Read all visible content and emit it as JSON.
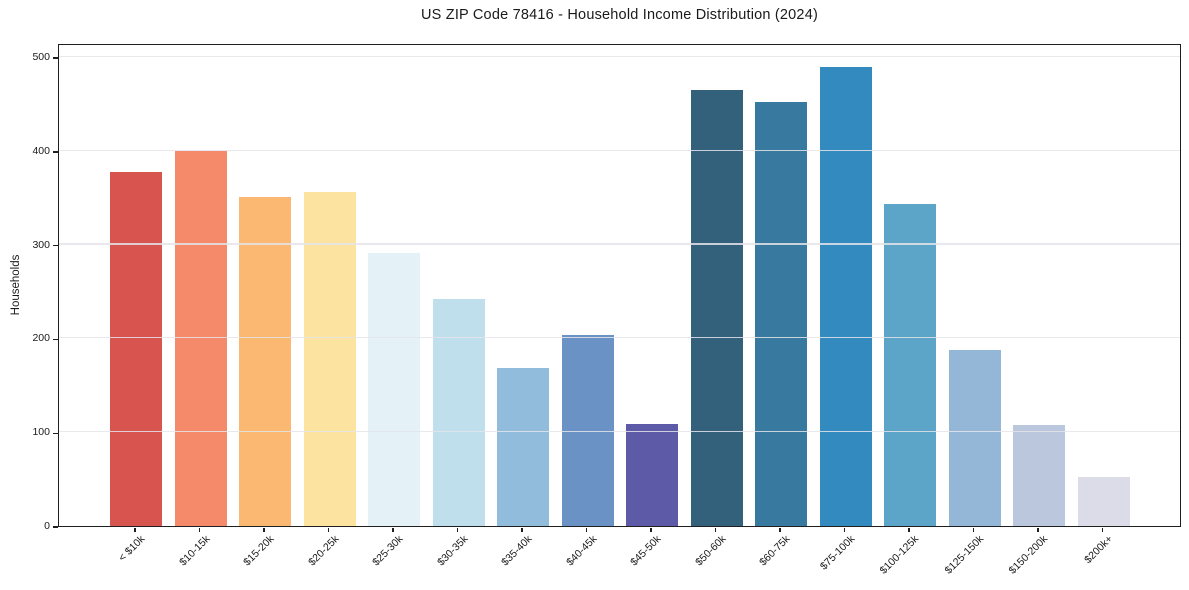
{
  "chart_data": {
    "type": "bar",
    "title": "US ZIP Code 78416 - Household Income Distribution (2024)",
    "ylabel": "Households",
    "xlabel": "",
    "categories": [
      "< $10k",
      "$10-15k",
      "$15-20k",
      "$20-25k",
      "$25-30k",
      "$30-35k",
      "$35-40k",
      "$40-45k",
      "$45-50k",
      "$50-60k",
      "$60-75k",
      "$75-100k",
      "$100-125k",
      "$125-150k",
      "$150-200k",
      "$200k+"
    ],
    "values": [
      378,
      400,
      351,
      356,
      291,
      242,
      168,
      204,
      109,
      465,
      452,
      489,
      343,
      188,
      108,
      52
    ],
    "bar_colors": [
      "#d8554f",
      "#f48a69",
      "#fab873",
      "#fce3a0",
      "#e4f2f7",
      "#c0dfec",
      "#92bcdc",
      "#6b92c4",
      "#5d5aa8",
      "#33607a",
      "#38799f",
      "#338abf",
      "#5ca4c8",
      "#94b7d7",
      "#bac7dd",
      "#dcdbe8"
    ],
    "yticks": [
      0,
      100,
      200,
      300,
      400,
      500
    ],
    "ylim": [
      0,
      515
    ],
    "grid": "horizontal-only, drawn over bars",
    "legend": "none",
    "axis_color": "#1f1f1f",
    "grid_color": "#e4e4ea",
    "background_color": "#ffffff"
  }
}
